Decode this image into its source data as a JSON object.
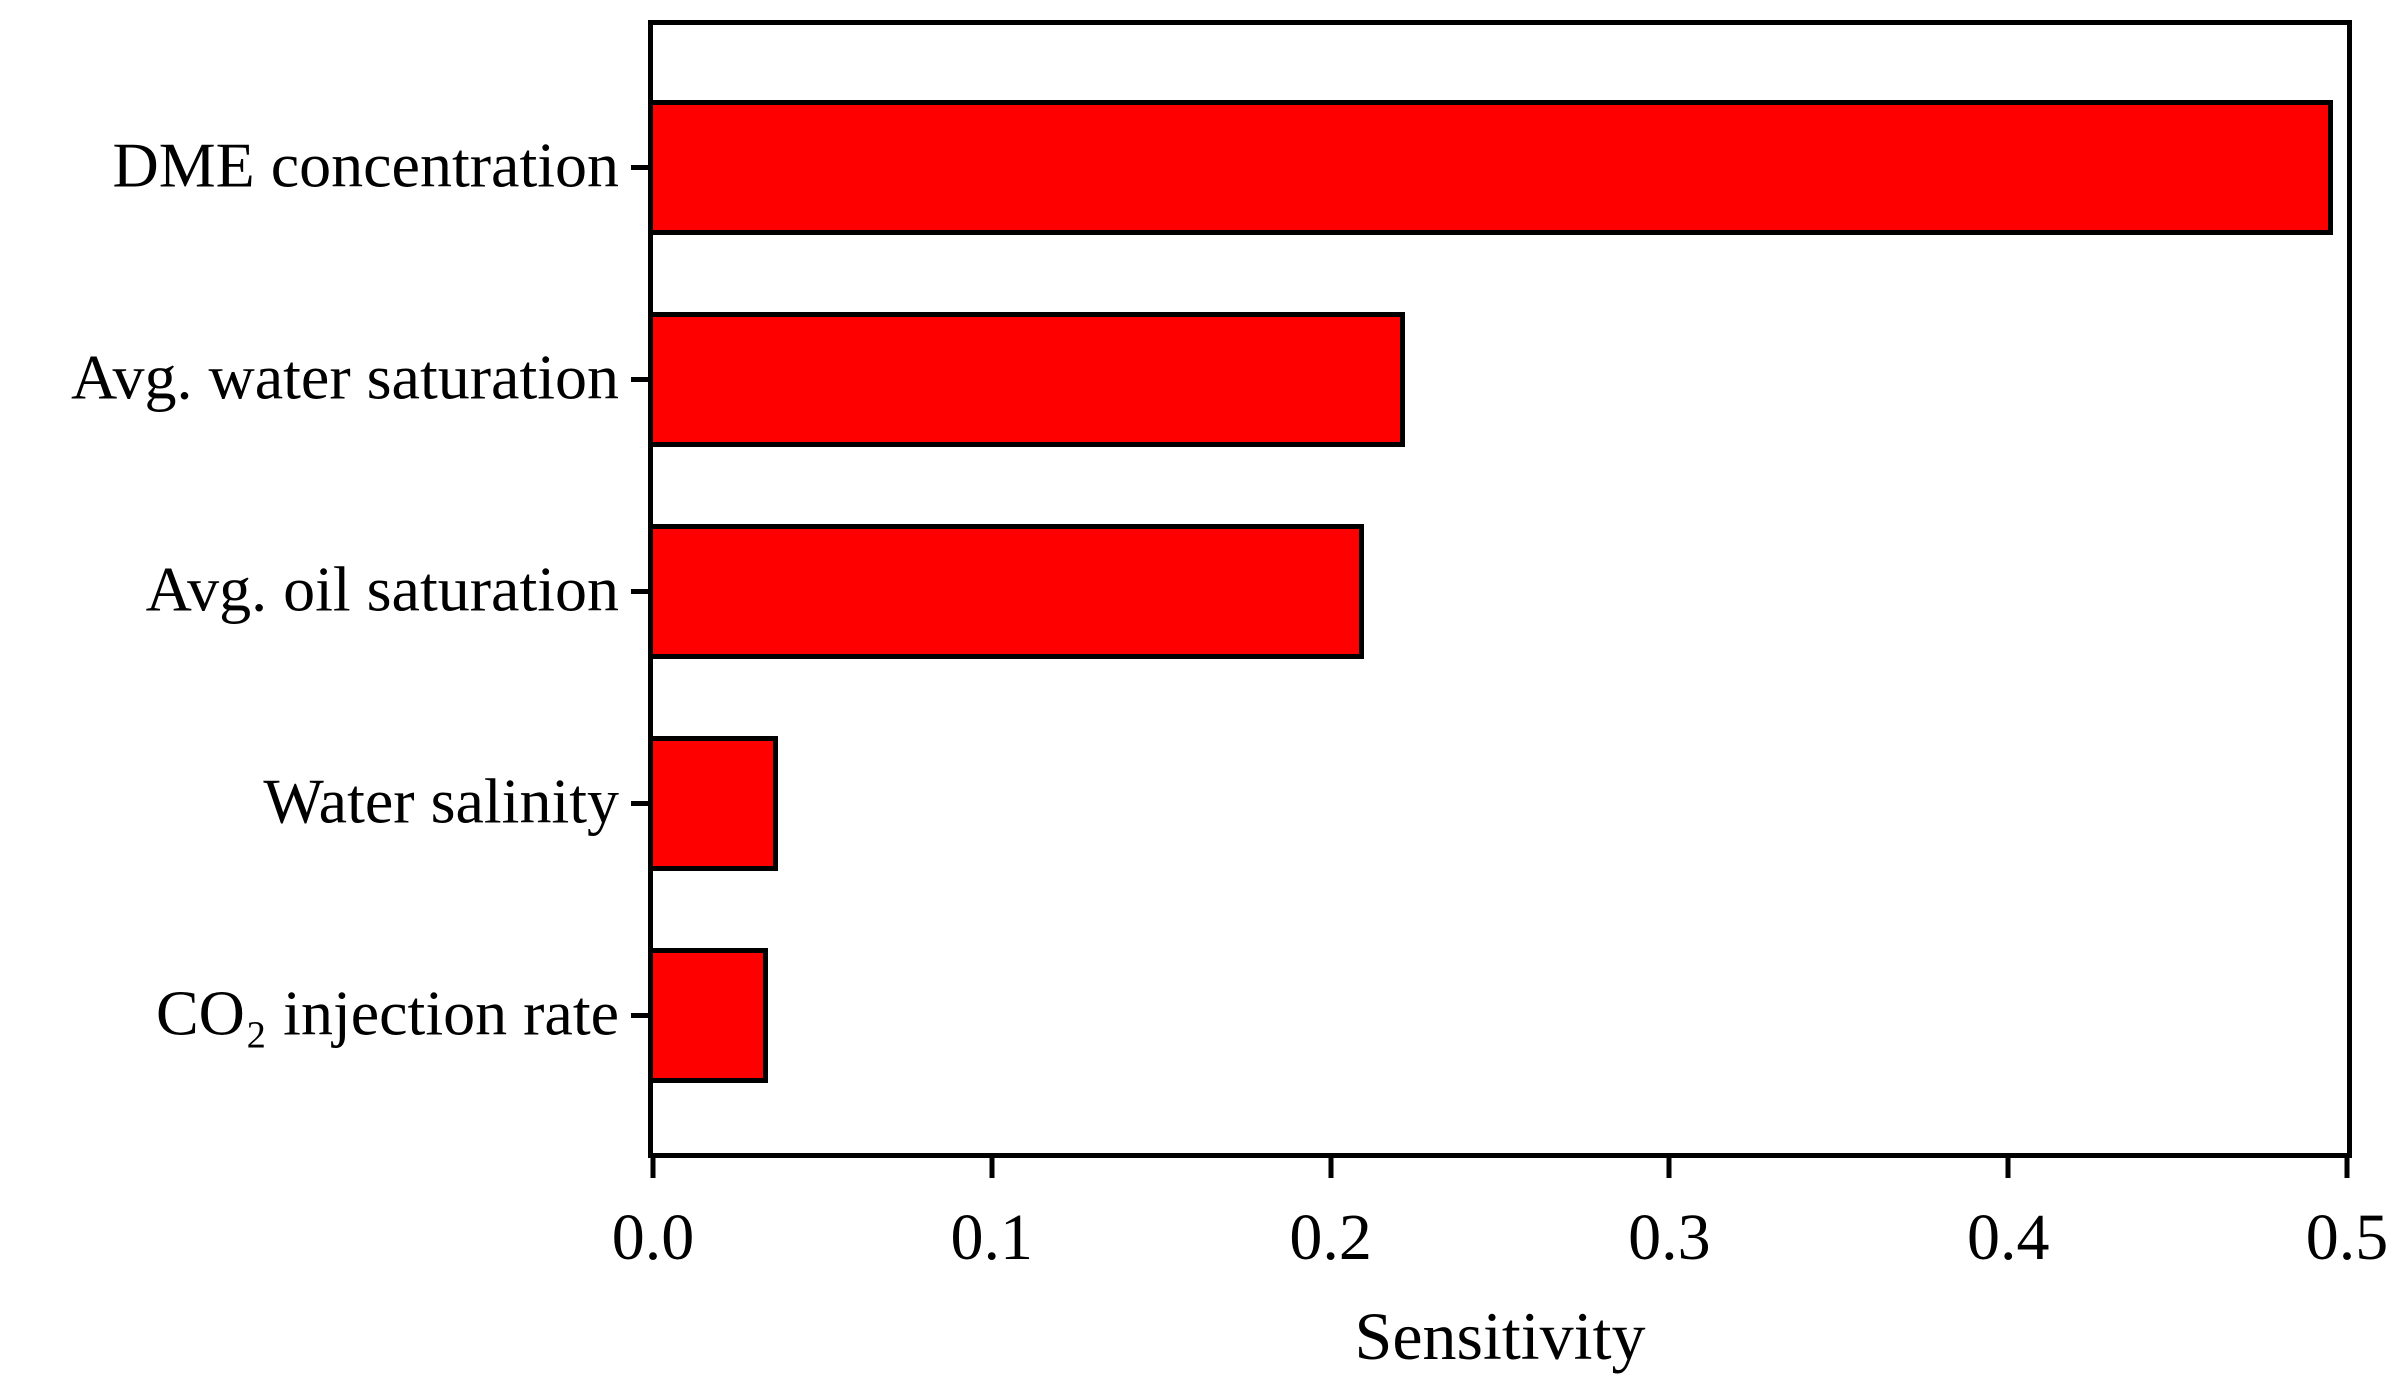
{
  "chart_data": {
    "type": "bar",
    "orientation": "horizontal",
    "title": "",
    "xlabel": "Sensitivity",
    "ylabel": "",
    "categories": [
      "DME concentration",
      "Avg. water saturation",
      "Avg. oil saturation",
      "Water salinity",
      "CO₂ injection rate"
    ],
    "values": [
      0.496,
      0.222,
      0.21,
      0.037,
      0.034
    ],
    "xlim": [
      0.0,
      0.5
    ],
    "x_ticks": [
      0.0,
      0.1,
      0.2,
      0.3,
      0.4,
      0.5
    ],
    "x_tick_labels": [
      "0.0",
      "0.1",
      "0.2",
      "0.3",
      "0.4",
      "0.5"
    ],
    "grid": false,
    "legend": null,
    "bar_color": "#ff0000",
    "bar_border_color": "#000000",
    "frame_color": "#000000",
    "background_color": "#ffffff",
    "text_color": "#000000"
  }
}
